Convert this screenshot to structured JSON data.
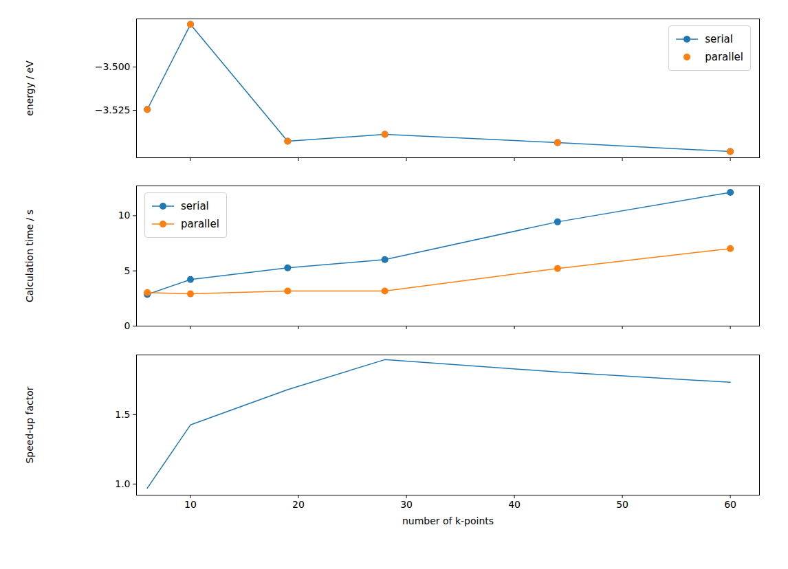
{
  "chart_data": [
    {
      "type": "line",
      "y_label": "energy / eV",
      "x": [
        6,
        10,
        19,
        28,
        44,
        60
      ],
      "series": [
        {
          "name": "serial",
          "color": "#1f77b4",
          "marker": "circle",
          "line_style": "solid",
          "type": "line",
          "values": [
            -3.5245,
            -3.4754,
            -3.5429,
            -3.5389,
            -3.5437,
            -3.5488
          ]
        },
        {
          "name": "parallel",
          "color": "#ff7f0e",
          "marker": "circle",
          "type": "scatter",
          "values": [
            -3.5245,
            -3.4754,
            -3.5429,
            -3.5389,
            -3.5437,
            -3.5488
          ]
        }
      ],
      "xlim": [
        5,
        62.7
      ],
      "xticks": [
        10,
        20,
        30,
        40,
        50,
        60
      ],
      "ylim": [
        -3.5524,
        -3.4722
      ],
      "yticks": [
        {
          "value": -3.5,
          "label": "−3.500"
        },
        {
          "value": -3.525,
          "label": "−3.525"
        }
      ],
      "legend": "upper right",
      "tick_labels": "y",
      "grid": false
    },
    {
      "type": "line",
      "y_label": "Calculation time / s",
      "x": [
        6,
        10,
        19,
        28,
        44,
        60
      ],
      "series": [
        {
          "name": "serial",
          "color": "#1f77b4",
          "marker": "circle",
          "line_style": "solid",
          "values": [
            2.86,
            4.22,
            5.28,
            6.02,
            9.44,
            12.11
          ]
        },
        {
          "name": "parallel",
          "color": "#ff7f0e",
          "marker": "circle",
          "line_style": "solid",
          "values": [
            3.04,
            2.92,
            3.17,
            3.17,
            5.22,
            7.02
          ]
        }
      ],
      "xlim": [
        5,
        62.7
      ],
      "xticks": [
        10,
        20,
        30,
        40,
        50,
        60
      ],
      "ylim": [
        0,
        12.7
      ],
      "yticks": [
        0,
        5,
        10
      ],
      "legend": "upper left",
      "tick_labels": "y",
      "grid": false
    },
    {
      "type": "line",
      "y_label": "Speed-up factor",
      "x_label": "number of k-points",
      "x": [
        6,
        10,
        19,
        28,
        44,
        60
      ],
      "values": [
        0.97,
        1.426,
        1.68,
        1.896,
        1.807,
        1.733
      ],
      "color": "#1f77b4",
      "line_style": "solid",
      "xlim": [
        5,
        62.7
      ],
      "xticks": [
        10,
        20,
        30,
        40,
        50,
        60
      ],
      "ylim": [
        0.92,
        1.93
      ],
      "yticks": [
        {
          "value": 1.0,
          "label": "1.0"
        },
        {
          "value": 1.5,
          "label": "1.5"
        }
      ],
      "grid": false
    }
  ]
}
